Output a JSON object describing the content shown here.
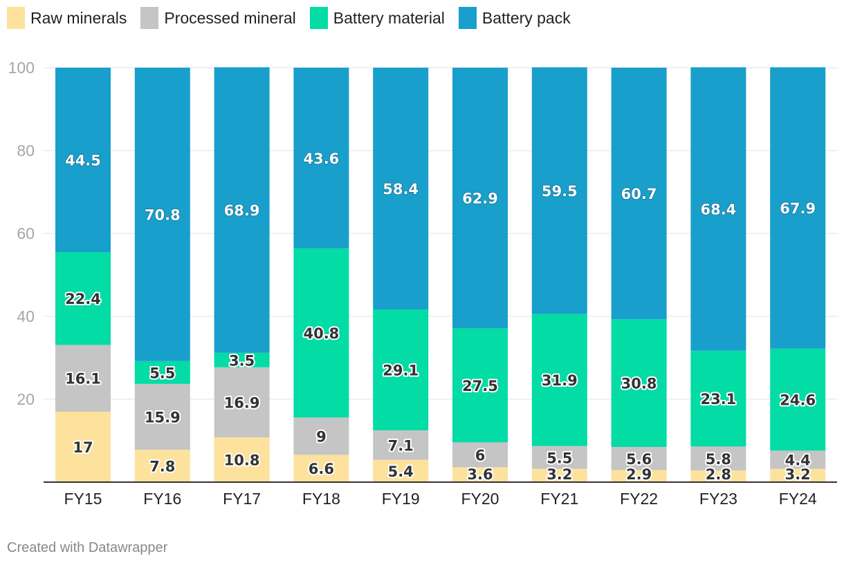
{
  "chart_data": {
    "type": "bar",
    "stacked": true,
    "title": "",
    "xlabel": "",
    "ylabel": "",
    "ylim": [
      0,
      100
    ],
    "yticks": [
      20,
      40,
      60,
      80,
      100
    ],
    "grid": true,
    "legend_position": "top-left",
    "categories": [
      "FY15",
      "FY16",
      "FY17",
      "FY18",
      "FY19",
      "FY20",
      "FY21",
      "FY22",
      "FY23",
      "FY24"
    ],
    "series": [
      {
        "name": "Raw minerals",
        "color": "#fde29d",
        "values": [
          17,
          7.8,
          10.8,
          6.6,
          5.4,
          3.6,
          3.2,
          2.9,
          2.8,
          3.2
        ],
        "labels": [
          "17",
          "7.8",
          "10.8",
          "6.6",
          "5.4",
          "3.6",
          "3.2",
          "2.9",
          "2.8",
          "3.2"
        ]
      },
      {
        "name": "Processed mineral",
        "color": "#c5c5c5",
        "values": [
          16.1,
          15.9,
          16.9,
          9,
          7.1,
          6,
          5.5,
          5.6,
          5.8,
          4.4
        ],
        "labels": [
          "16.1",
          "15.9",
          "16.9",
          "9",
          "7.1",
          "6",
          "5.5",
          "5.6",
          "5.8",
          "4.4"
        ]
      },
      {
        "name": "Battery material",
        "color": "#03dca5",
        "values": [
          22.4,
          5.5,
          3.5,
          40.8,
          29.1,
          27.5,
          31.9,
          30.8,
          23.1,
          24.6
        ],
        "labels": [
          "22.4",
          "5.5",
          "3.5",
          "40.8",
          "29.1",
          "27.5",
          "31.9",
          "30.8",
          "23.1",
          "24.6"
        ]
      },
      {
        "name": "Battery pack",
        "color": "#189fcc",
        "values": [
          44.5,
          70.8,
          68.9,
          43.6,
          58.4,
          62.9,
          59.5,
          60.7,
          68.4,
          67.9
        ],
        "labels": [
          "44.5",
          "70.8",
          "68.9",
          "43.6",
          "58.4",
          "62.9",
          "59.5",
          "60.7",
          "68.4",
          "67.9"
        ]
      }
    ]
  },
  "footer": {
    "credit": "Created with Datawrapper"
  }
}
